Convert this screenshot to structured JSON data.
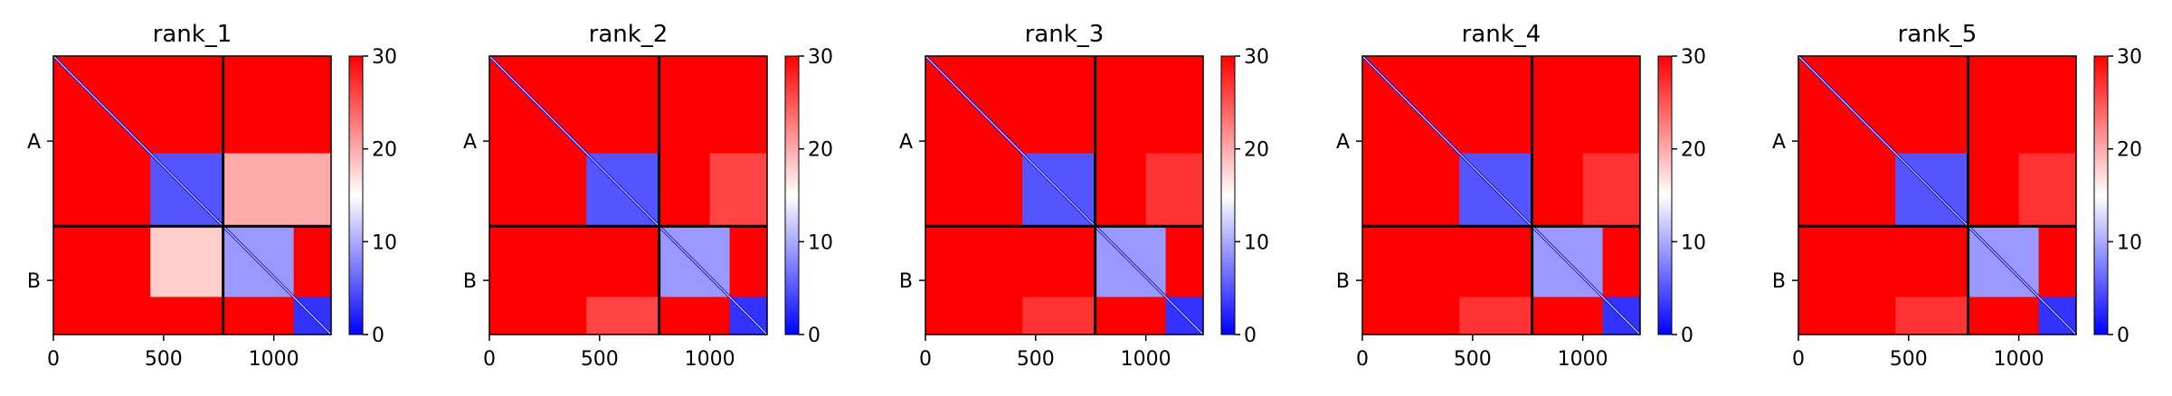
{
  "colorbar": {
    "colors": [
      "#0000ff",
      "#ffffff",
      "#ff0000"
    ],
    "range": [
      0,
      30
    ],
    "ticks": [
      "0",
      "10",
      "20",
      "30"
    ]
  },
  "chart_data": [
    {
      "type": "heatmap",
      "title": "rank_1",
      "x_ticks": [
        "0",
        "500",
        "1000"
      ],
      "y_chains": [
        "A",
        "B"
      ],
      "residues": 1260,
      "chain_boundary": 770,
      "colorbar_range": [
        0,
        30
      ],
      "blocks": {
        "A_domain1_end": 440,
        "B_sub_start": 1090,
        "AB_low_region": {
          "rows": [
            770,
            1090
          ],
          "cols": [
            440,
            770
          ],
          "value": 18
        },
        "BA_low_region": {
          "rows": [
            440,
            770
          ],
          "cols": [
            770,
            1260
          ],
          "value": 20
        }
      }
    },
    {
      "type": "heatmap",
      "title": "rank_2",
      "x_ticks": [
        "0",
        "500",
        "1000"
      ],
      "y_chains": [
        "A",
        "B"
      ],
      "residues": 1260,
      "chain_boundary": 770,
      "colorbar_range": [
        0,
        30
      ],
      "blocks": {
        "A_domain1_end": 440,
        "B_sub_start": 1090,
        "AB_low_region": {
          "rows": [
            1090,
            1260
          ],
          "cols": [
            440,
            770
          ],
          "value": 26
        },
        "BA_low_region": {
          "rows": [
            440,
            770
          ],
          "cols": [
            1000,
            1260
          ],
          "value": 26
        }
      }
    },
    {
      "type": "heatmap",
      "title": "rank_3",
      "x_ticks": [
        "0",
        "500",
        "1000"
      ],
      "y_chains": [
        "A",
        "B"
      ],
      "residues": 1260,
      "chain_boundary": 770,
      "colorbar_range": [
        0,
        30
      ],
      "blocks": {
        "A_domain1_end": 440,
        "B_sub_start": 1090,
        "AB_low_region": {
          "rows": [
            1090,
            1260
          ],
          "cols": [
            440,
            770
          ],
          "value": 27
        },
        "BA_low_region": {
          "rows": [
            440,
            770
          ],
          "cols": [
            1000,
            1260
          ],
          "value": 27
        }
      }
    },
    {
      "type": "heatmap",
      "title": "rank_4",
      "x_ticks": [
        "0",
        "500",
        "1000"
      ],
      "y_chains": [
        "A",
        "B"
      ],
      "residues": 1260,
      "chain_boundary": 770,
      "colorbar_range": [
        0,
        30
      ],
      "blocks": {
        "A_domain1_end": 440,
        "B_sub_start": 1090,
        "AB_low_region": {
          "rows": [
            1090,
            1260
          ],
          "cols": [
            440,
            770
          ],
          "value": 27
        },
        "BA_low_region": {
          "rows": [
            440,
            770
          ],
          "cols": [
            1000,
            1260
          ],
          "value": 27
        }
      }
    },
    {
      "type": "heatmap",
      "title": "rank_5",
      "x_ticks": [
        "0",
        "500",
        "1000"
      ],
      "y_chains": [
        "A",
        "B"
      ],
      "residues": 1260,
      "chain_boundary": 770,
      "colorbar_range": [
        0,
        30
      ],
      "blocks": {
        "A_domain1_end": 440,
        "B_sub_start": 1090,
        "AB_low_region": {
          "rows": [
            1090,
            1260
          ],
          "cols": [
            440,
            770
          ],
          "value": 27
        },
        "BA_low_region": {
          "rows": [
            440,
            770
          ],
          "cols": [
            1000,
            1260
          ],
          "value": 27
        }
      }
    }
  ]
}
